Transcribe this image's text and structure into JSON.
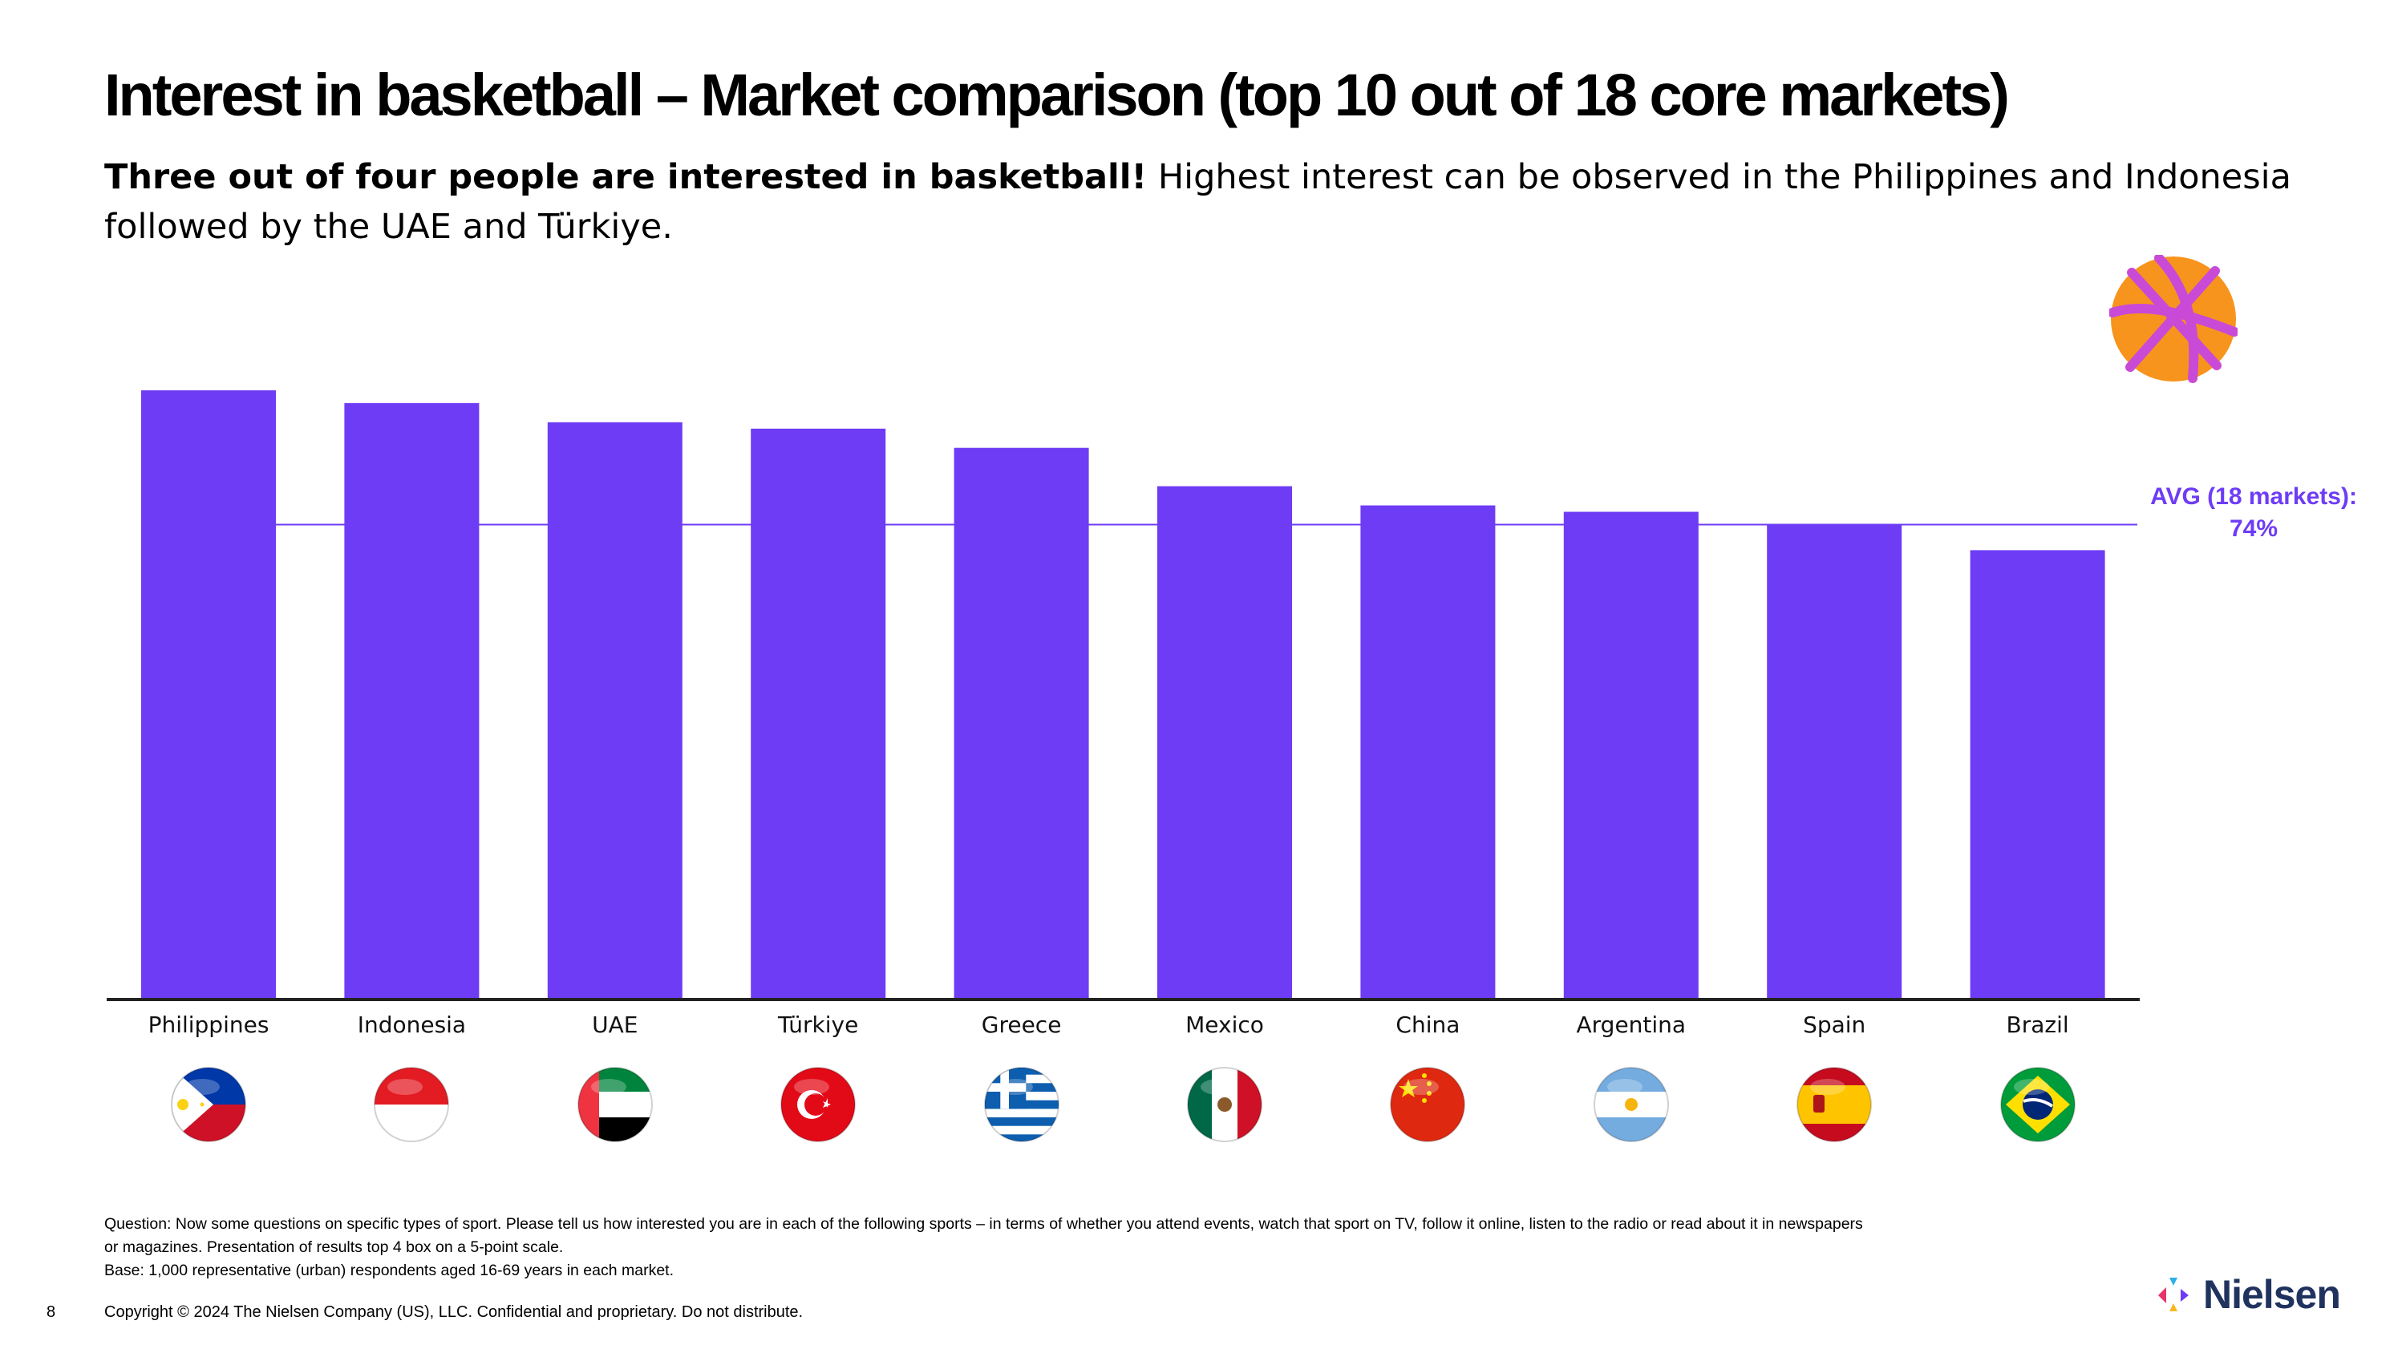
{
  "header": {
    "title": "Interest in basketball – Market comparison (top 10 out of 18 core markets)",
    "subtitle_bold": "Three out of four people are interested in basketball!",
    "subtitle_rest": " Highest interest can be observed in the Philippines and Indonesia followed by the UAE and Türkiye."
  },
  "chart_data": {
    "type": "bar",
    "title": "Interest in basketball – Market comparison (top 10 out of 18 core markets)",
    "categories": [
      "Philippines",
      "Indonesia",
      "UAE",
      "Türkiye",
      "Greece",
      "Mexico",
      "China",
      "Argentina",
      "Spain",
      "Brazil"
    ],
    "values": [
      95,
      93,
      90,
      89,
      86,
      80,
      77,
      76,
      74,
      70
    ],
    "ylim": [
      0,
      100
    ],
    "xlabel": "",
    "ylabel": "",
    "grid": false,
    "average": {
      "value": 74,
      "label_line1": "AVG (18 markets):",
      "label_line2": "74%"
    },
    "bar_color": "#6e3cf5"
  },
  "icons": {
    "basketball": "basketball-icon",
    "flags": [
      "philippines-flag-icon",
      "indonesia-flag-icon",
      "uae-flag-icon",
      "turkiye-flag-icon",
      "greece-flag-icon",
      "mexico-flag-icon",
      "china-flag-icon",
      "argentina-flag-icon",
      "spain-flag-icon",
      "brazil-flag-icon"
    ]
  },
  "footer": {
    "question_line1": "Question: Now some questions on specific types of sport. Please tell us how interested you are in each of the following sports – in terms of whether you attend events, watch that sport on TV, follow it online, listen to the radio or read about it in newspapers",
    "question_line2": "or magazines. Presentation of results top 4 box on a 5-point scale.",
    "base": "Base: 1,000 representative (urban) respondents aged 16-69 years in each market.",
    "page_number": "8",
    "copyright": "Copyright © 2024 The Nielsen Company (US), LLC. Confidential and proprietary. Do not distribute.",
    "logo_text": "Nielsen"
  }
}
